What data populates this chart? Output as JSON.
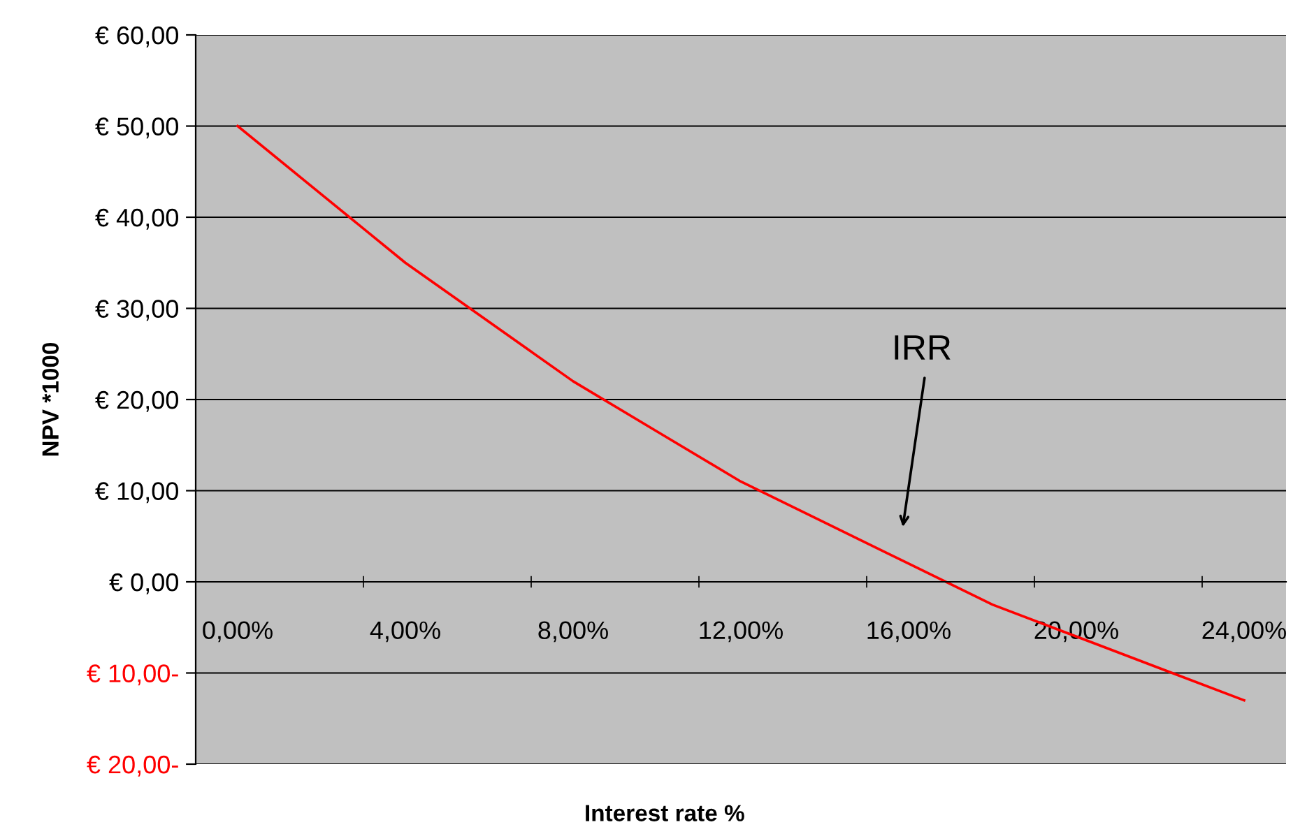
{
  "chart_data": {
    "type": "line",
    "xlabel": "Interest rate %",
    "ylabel": "NPV *1000",
    "categories": [
      "0,00%",
      null,
      "4,00%",
      null,
      "8,00%",
      null,
      "12,00%",
      null,
      "16,00%",
      null,
      "20,00%",
      null,
      "24,00%"
    ],
    "series": [
      {
        "color": "#ff0000",
        "values": [
          50,
          42.5,
          35,
          28.5,
          22,
          16.5,
          11,
          6.5,
          2,
          -2.5,
          -6,
          -9.5,
          -13
        ]
      }
    ],
    "ylim": [
      -20,
      60
    ],
    "yticks": [
      {
        "value": -20,
        "label": "€ 20,00-"
      },
      {
        "value": -10,
        "label": "€ 10,00-"
      },
      {
        "value": 0,
        "label": "€ 0,00"
      },
      {
        "value": 10,
        "label": "€ 10,00"
      },
      {
        "value": 20,
        "label": "€ 20,00"
      },
      {
        "value": 30,
        "label": "€ 30,00"
      },
      {
        "value": 40,
        "label": "€ 40,00"
      },
      {
        "value": 50,
        "label": "€ 50,00"
      },
      {
        "value": 60,
        "label": "€ 60,00"
      }
    ],
    "grid": "y",
    "marker": "none",
    "line_style": "solid",
    "legend": false,
    "annotations": [
      "IRR"
    ]
  }
}
